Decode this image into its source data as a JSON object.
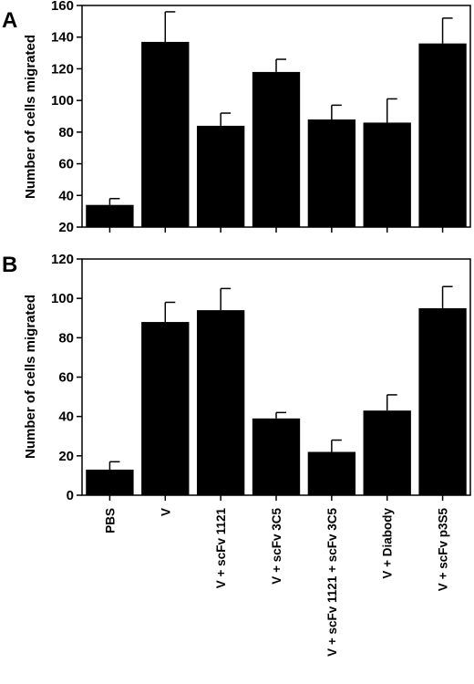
{
  "chart_data": [
    {
      "type": "bar",
      "panel": "A",
      "categories": [
        "PBS",
        "V",
        "V + scFv 1121",
        "V + scFv 3C5",
        "V + scFv 1121 + scFv 3C5",
        "V + Diabody",
        "V + scFv p3S5"
      ],
      "values": [
        34,
        137,
        84,
        118,
        88,
        86,
        136
      ],
      "errors": [
        4,
        19,
        8,
        8,
        9,
        15,
        16
      ],
      "title": "",
      "xlabel": "",
      "ylabel": "Number of cells migrated",
      "ylim": [
        20,
        160
      ],
      "yticks": [
        20,
        40,
        60,
        80,
        100,
        120,
        140,
        160
      ],
      "grid": false,
      "bar_color": "#000000"
    },
    {
      "type": "bar",
      "panel": "B",
      "categories": [
        "PBS",
        "V",
        "V + scFv 1121",
        "V + scFv 3C5",
        "V + scFv 1121 + scFv 3C5",
        "V + Diabody",
        "V + scFv p3S5"
      ],
      "values": [
        13,
        88,
        94,
        39,
        22,
        43,
        95
      ],
      "errors": [
        4,
        10,
        11,
        3,
        6,
        8,
        11
      ],
      "title": "",
      "xlabel": "",
      "ylabel": "Number of cells migrated",
      "ylim": [
        0,
        120
      ],
      "yticks": [
        0,
        20,
        40,
        60,
        80,
        100,
        120
      ],
      "grid": false,
      "bar_color": "#000000"
    }
  ]
}
